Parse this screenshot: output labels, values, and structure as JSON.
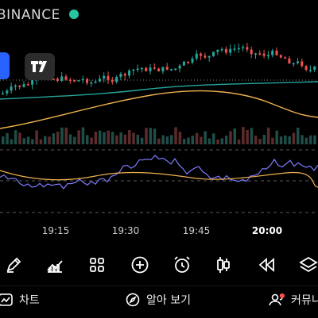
{
  "header": {
    "exchange": "BINANCE",
    "status_color": "#26c6a2"
  },
  "chart": {
    "up_color": "#26a69a",
    "down_color": "#ef5350",
    "ma_fast_color": "#26a69a",
    "ma_slow_color": "#f0b24e",
    "rsi_color": "#7e7bff",
    "x_ticks": [
      {
        "label": "19:15",
        "bold": false
      },
      {
        "label": "19:30",
        "bold": false
      },
      {
        "label": "19:45",
        "bold": false
      },
      {
        "label": "20:00",
        "bold": true
      }
    ]
  },
  "toolbar": {
    "tools": [
      "pencil-icon",
      "indicators-icon",
      "apps-grid-icon",
      "add-icon",
      "alarm-icon",
      "candles-icon",
      "replay-icon",
      "layers-icon"
    ]
  },
  "bottom_nav": {
    "chart_label": "차트",
    "explore_label": "알아 보기",
    "community_label": "커뮤니티"
  }
}
